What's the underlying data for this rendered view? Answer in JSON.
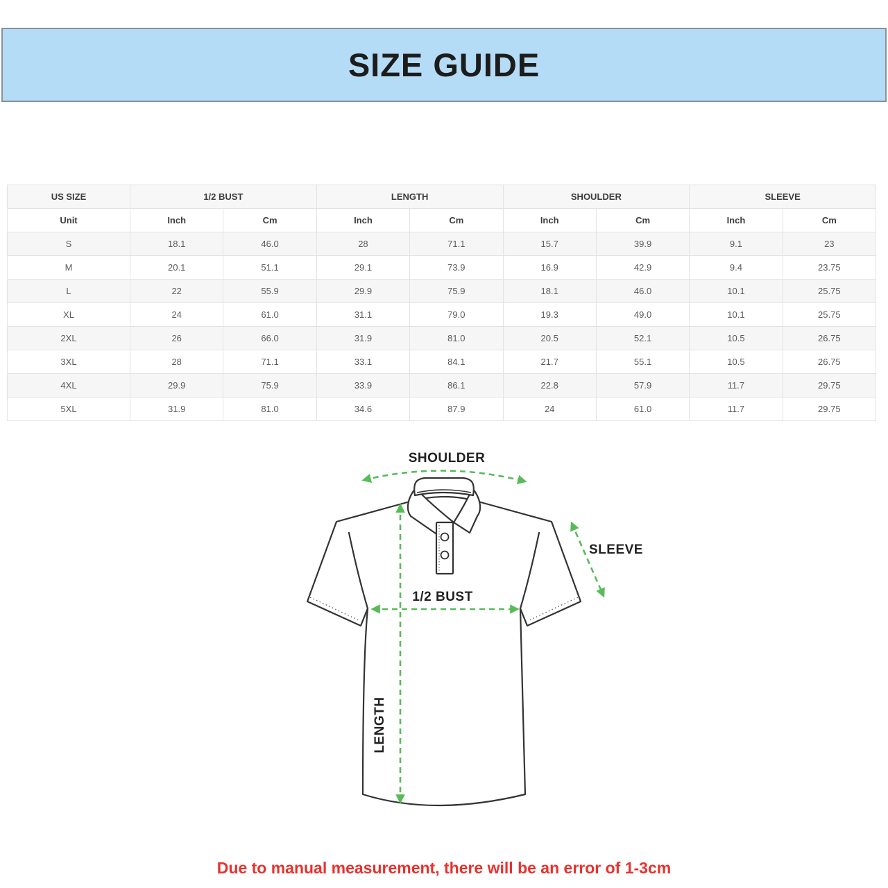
{
  "banner": {
    "title": "SIZE GUIDE",
    "bg_color": "#b5dcf6",
    "border_color": "#87929b"
  },
  "table": {
    "group_headers": [
      "US SIZE",
      "1/2 BUST",
      "LENGTH",
      "SHOULDER",
      "SLEEVE"
    ],
    "unit_row": [
      "Unit",
      "Inch",
      "Cm",
      "Inch",
      "Cm",
      "Inch",
      "Cm",
      "Inch",
      "Cm"
    ],
    "rows": [
      [
        "S",
        "18.1",
        "46.0",
        "28",
        "71.1",
        "15.7",
        "39.9",
        "9.1",
        "23"
      ],
      [
        "M",
        "20.1",
        "51.1",
        "29.1",
        "73.9",
        "16.9",
        "42.9",
        "9.4",
        "23.75"
      ],
      [
        "L",
        "22",
        "55.9",
        "29.9",
        "75.9",
        "18.1",
        "46.0",
        "10.1",
        "25.75"
      ],
      [
        "XL",
        "24",
        "61.0",
        "31.1",
        "79.0",
        "19.3",
        "49.0",
        "10.1",
        "25.75"
      ],
      [
        "2XL",
        "26",
        "66.0",
        "31.9",
        "81.0",
        "20.5",
        "52.1",
        "10.5",
        "26.75"
      ],
      [
        "3XL",
        "28",
        "71.1",
        "33.1",
        "84.1",
        "21.7",
        "55.1",
        "10.5",
        "26.75"
      ],
      [
        "4XL",
        "29.9",
        "75.9",
        "33.9",
        "86.1",
        "22.8",
        "57.9",
        "11.7",
        "29.75"
      ],
      [
        "5XL",
        "31.9",
        "81.0",
        "34.6",
        "87.9",
        "24",
        "61.0",
        "11.7",
        "29.75"
      ]
    ],
    "stripe_color": "#f6f6f6",
    "border_color": "#e3e3e3"
  },
  "diagram": {
    "labels": {
      "shoulder": "SHOULDER",
      "sleeve": "SLEEVE",
      "half_bust": "1/2 BUST",
      "length": "LENGTH"
    },
    "arrow_color": "#57bb58",
    "outline_color": "#333333"
  },
  "disclaimer": {
    "text": "Due to manual measurement, there will be an error of 1-3cm",
    "color": "#e8312d"
  }
}
